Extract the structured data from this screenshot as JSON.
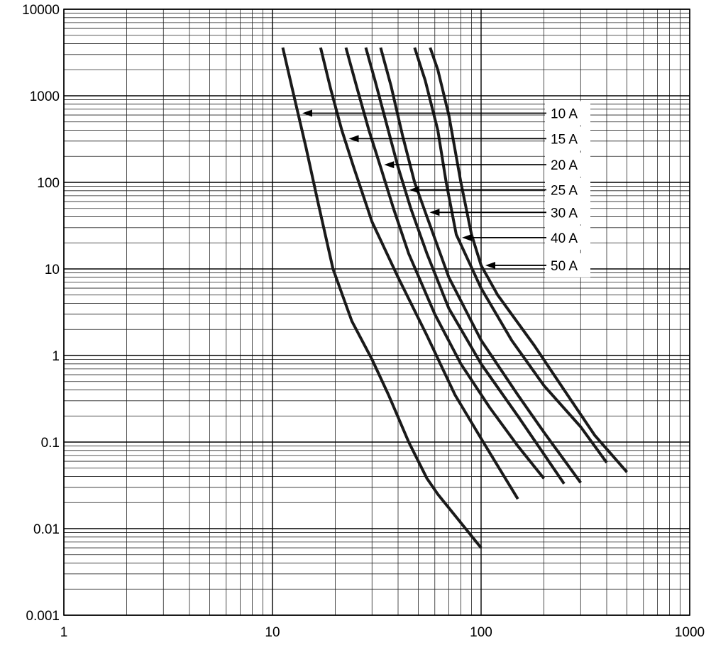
{
  "chart_data": {
    "type": "line",
    "title": "",
    "xlabel": "",
    "ylabel": "",
    "x_scale": "log",
    "y_scale": "log",
    "xlim": [
      1,
      1000
    ],
    "ylim": [
      0.001,
      10000
    ],
    "grid": true,
    "x_ticks": [
      "1",
      "10",
      "100",
      "1000"
    ],
    "y_ticks": [
      "0.001",
      "0.01",
      "0.1",
      "1",
      "10",
      "100",
      "1000",
      "10000"
    ],
    "line_color": "#1a1a1a",
    "series": [
      {
        "name": "10 A",
        "label_arrow_y": 630,
        "points": [
          [
            11.2,
            3600
          ],
          [
            12.8,
            900
          ],
          [
            14.5,
            250
          ],
          [
            16.5,
            60
          ],
          [
            19.5,
            10
          ],
          [
            24,
            2.5
          ],
          [
            30,
            0.9
          ],
          [
            36,
            0.35
          ],
          [
            45,
            0.1
          ],
          [
            55,
            0.038
          ],
          [
            62,
            0.025
          ],
          [
            100,
            0.006
          ]
        ]
      },
      {
        "name": "15 A",
        "label_arrow_y": 320,
        "points": [
          [
            17,
            3600
          ],
          [
            19,
            1200
          ],
          [
            21.5,
            400
          ],
          [
            24.5,
            150
          ],
          [
            30,
            35
          ],
          [
            40,
            8
          ],
          [
            55,
            1.7
          ],
          [
            75,
            0.35
          ],
          [
            100,
            0.11
          ],
          [
            150,
            0.022
          ]
        ]
      },
      {
        "name": "20 A",
        "label_arrow_y": 160,
        "points": [
          [
            22.5,
            3600
          ],
          [
            25.5,
            1200
          ],
          [
            29,
            400
          ],
          [
            33,
            150
          ],
          [
            38,
            50
          ],
          [
            45,
            15
          ],
          [
            60,
            3
          ],
          [
            80,
            0.8
          ],
          [
            110,
            0.25
          ],
          [
            150,
            0.09
          ],
          [
            200,
            0.038
          ]
        ]
      },
      {
        "name": "25 A",
        "label_arrow_y": 82,
        "points": [
          [
            28,
            3600
          ],
          [
            31,
            1500
          ],
          [
            35,
            500
          ],
          [
            40,
            150
          ],
          [
            46,
            50
          ],
          [
            55,
            15
          ],
          [
            70,
            3.5
          ],
          [
            100,
            0.8
          ],
          [
            150,
            0.2
          ],
          [
            250,
            0.033
          ]
        ]
      },
      {
        "name": "30 A",
        "label_arrow_y": 45,
        "points": [
          [
            33,
            3600
          ],
          [
            37,
            1300
          ],
          [
            42,
            350
          ],
          [
            48,
            100
          ],
          [
            55,
            40
          ],
          [
            70,
            8
          ],
          [
            100,
            1.5
          ],
          [
            150,
            0.35
          ],
          [
            200,
            0.13
          ],
          [
            300,
            0.034
          ]
        ]
      },
      {
        "name": "40 A",
        "label_arrow_y": 23,
        "points": [
          [
            48,
            3600
          ],
          [
            54,
            1500
          ],
          [
            62,
            400
          ],
          [
            68,
            100
          ],
          [
            76,
            25
          ],
          [
            100,
            6
          ],
          [
            140,
            1.5
          ],
          [
            200,
            0.45
          ],
          [
            300,
            0.15
          ],
          [
            400,
            0.058
          ]
        ]
      },
      {
        "name": "50 A",
        "label_arrow_y": 11,
        "points": [
          [
            57,
            3600
          ],
          [
            62,
            2000
          ],
          [
            70,
            600
          ],
          [
            80,
            100
          ],
          [
            90,
            25
          ],
          [
            100,
            11
          ],
          [
            120,
            5
          ],
          [
            180,
            1.3
          ],
          [
            250,
            0.4
          ],
          [
            350,
            0.12
          ],
          [
            500,
            0.045
          ]
        ]
      }
    ]
  }
}
